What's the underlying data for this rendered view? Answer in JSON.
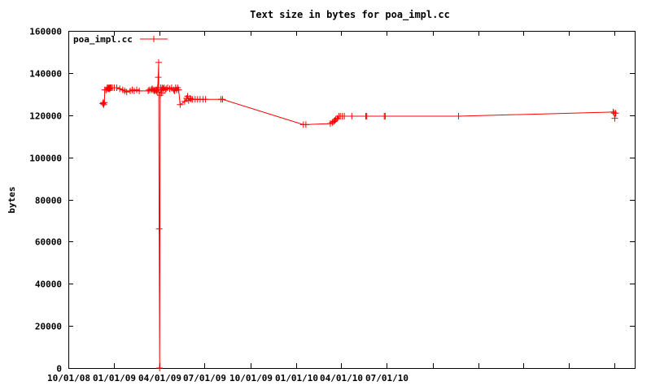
{
  "chart_data": {
    "type": "line",
    "title": "Text size in bytes for poa_impl.cc",
    "xlabel": "",
    "ylabel": "bytes",
    "ylim": [
      0,
      160000
    ],
    "y_ticks": [
      0,
      20000,
      40000,
      60000,
      80000,
      100000,
      120000,
      140000,
      160000
    ],
    "x_axis": {
      "type": "date",
      "min": "2008-10-01",
      "max": "2011-11-10"
    },
    "x_ticks": [
      {
        "date": "2008-10-01",
        "label": "10/01/08"
      },
      {
        "date": "2009-01-01",
        "label": "01/01/09"
      },
      {
        "date": "2009-04-01",
        "label": "04/01/09"
      },
      {
        "date": "2009-07-01",
        "label": "07/01/09"
      },
      {
        "date": "2009-10-01",
        "label": "10/01/09"
      },
      {
        "date": "2010-01-01",
        "label": "01/01/10"
      },
      {
        "date": "2010-04-01",
        "label": "04/01/10"
      },
      {
        "date": "2010-07-01",
        "label": "07/01/10"
      },
      {
        "date": "2010-10-01",
        "label": ""
      },
      {
        "date": "2011-01-01",
        "label": ""
      },
      {
        "date": "2011-04-01",
        "label": ""
      },
      {
        "date": "2011-07-01",
        "label": ""
      },
      {
        "date": "2011-10-01",
        "label": ""
      }
    ],
    "legend_position": "top-left",
    "grid": false,
    "series": [
      {
        "name": "poa_impl.cc",
        "color": "#ff0000",
        "marker": "plus",
        "points": [
          [
            "2008-12-09",
            125500
          ],
          [
            "2008-12-10",
            126000
          ],
          [
            "2008-12-11",
            125000
          ],
          [
            "2008-12-12",
            126000
          ],
          [
            "2008-12-13",
            132000
          ],
          [
            "2008-12-16",
            132000
          ],
          [
            "2008-12-18",
            133000
          ],
          [
            "2008-12-19",
            132500
          ],
          [
            "2008-12-20",
            133000
          ],
          [
            "2008-12-21",
            132500
          ],
          [
            "2008-12-22",
            133000
          ],
          [
            "2008-12-23",
            132500
          ],
          [
            "2008-12-24",
            133000
          ],
          [
            "2008-12-26",
            133000
          ],
          [
            "2008-12-28",
            133000
          ],
          [
            "2009-01-01",
            133000
          ],
          [
            "2009-01-06",
            133000
          ],
          [
            "2009-01-12",
            132500
          ],
          [
            "2009-01-18",
            132000
          ],
          [
            "2009-01-22",
            131500
          ],
          [
            "2009-01-26",
            131000
          ],
          [
            "2009-02-02",
            131500
          ],
          [
            "2009-02-06",
            132000
          ],
          [
            "2009-02-10",
            131500
          ],
          [
            "2009-02-15",
            132000
          ],
          [
            "2009-02-20",
            131500
          ],
          [
            "2009-03-10",
            131500
          ],
          [
            "2009-03-12",
            132000
          ],
          [
            "2009-03-16",
            132000
          ],
          [
            "2009-03-18",
            132500
          ],
          [
            "2009-03-20",
            132000
          ],
          [
            "2009-03-22",
            131500
          ],
          [
            "2009-03-24",
            132000
          ],
          [
            "2009-03-26",
            131500
          ],
          [
            "2009-03-27",
            132000
          ],
          [
            "2009-03-28",
            131000
          ],
          [
            "2009-03-29",
            133000
          ],
          [
            "2009-03-30",
            138000
          ],
          [
            "2009-03-31",
            145000
          ],
          [
            "2009-04-01",
            66000
          ],
          [
            "2009-04-02",
            0
          ],
          [
            "2009-04-03",
            129500
          ],
          [
            "2009-04-04",
            133000
          ],
          [
            "2009-04-05",
            132000
          ],
          [
            "2009-04-06",
            130500
          ],
          [
            "2009-04-07",
            133000
          ],
          [
            "2009-04-09",
            132500
          ],
          [
            "2009-04-11",
            133000
          ],
          [
            "2009-04-13",
            132000
          ],
          [
            "2009-04-15",
            132500
          ],
          [
            "2009-04-18",
            133000
          ],
          [
            "2009-04-22",
            132500
          ],
          [
            "2009-04-26",
            133000
          ],
          [
            "2009-04-30",
            132000
          ],
          [
            "2009-05-02",
            131500
          ],
          [
            "2009-05-04",
            133000
          ],
          [
            "2009-05-06",
            132000
          ],
          [
            "2009-05-08",
            133000
          ],
          [
            "2009-05-10",
            132000
          ],
          [
            "2009-05-13",
            125000
          ],
          [
            "2009-05-22",
            126500
          ],
          [
            "2009-05-26",
            128000
          ],
          [
            "2009-05-28",
            129000
          ],
          [
            "2009-05-30",
            127000
          ],
          [
            "2009-06-02",
            128000
          ],
          [
            "2009-06-04",
            127500
          ],
          [
            "2009-06-07",
            127500
          ],
          [
            "2009-06-12",
            127500
          ],
          [
            "2009-06-17",
            127500
          ],
          [
            "2009-06-22",
            127500
          ],
          [
            "2009-06-28",
            127500
          ],
          [
            "2009-07-03",
            127500
          ],
          [
            "2009-08-03",
            127500
          ],
          [
            "2009-08-06",
            127500
          ],
          [
            "2010-01-15",
            115500
          ],
          [
            "2010-01-20",
            115500
          ],
          [
            "2010-03-10",
            116000
          ],
          [
            "2010-03-14",
            116500
          ],
          [
            "2010-03-17",
            117000
          ],
          [
            "2010-03-19",
            117500
          ],
          [
            "2010-03-21",
            118000
          ],
          [
            "2010-03-24",
            118500
          ],
          [
            "2010-03-27",
            119500
          ],
          [
            "2010-03-30",
            119500
          ],
          [
            "2010-04-03",
            119500
          ],
          [
            "2010-04-07",
            119500
          ],
          [
            "2010-04-22",
            119500
          ],
          [
            "2010-05-20",
            119500
          ],
          [
            "2010-05-22",
            119500
          ],
          [
            "2010-06-26",
            119500
          ],
          [
            "2010-06-28",
            119500
          ],
          [
            "2010-11-22",
            119500
          ],
          [
            "2011-09-28",
            121500
          ],
          [
            "2011-09-30",
            121000
          ],
          [
            "2011-10-01",
            118500
          ],
          [
            "2011-10-03",
            121000
          ]
        ]
      }
    ]
  }
}
